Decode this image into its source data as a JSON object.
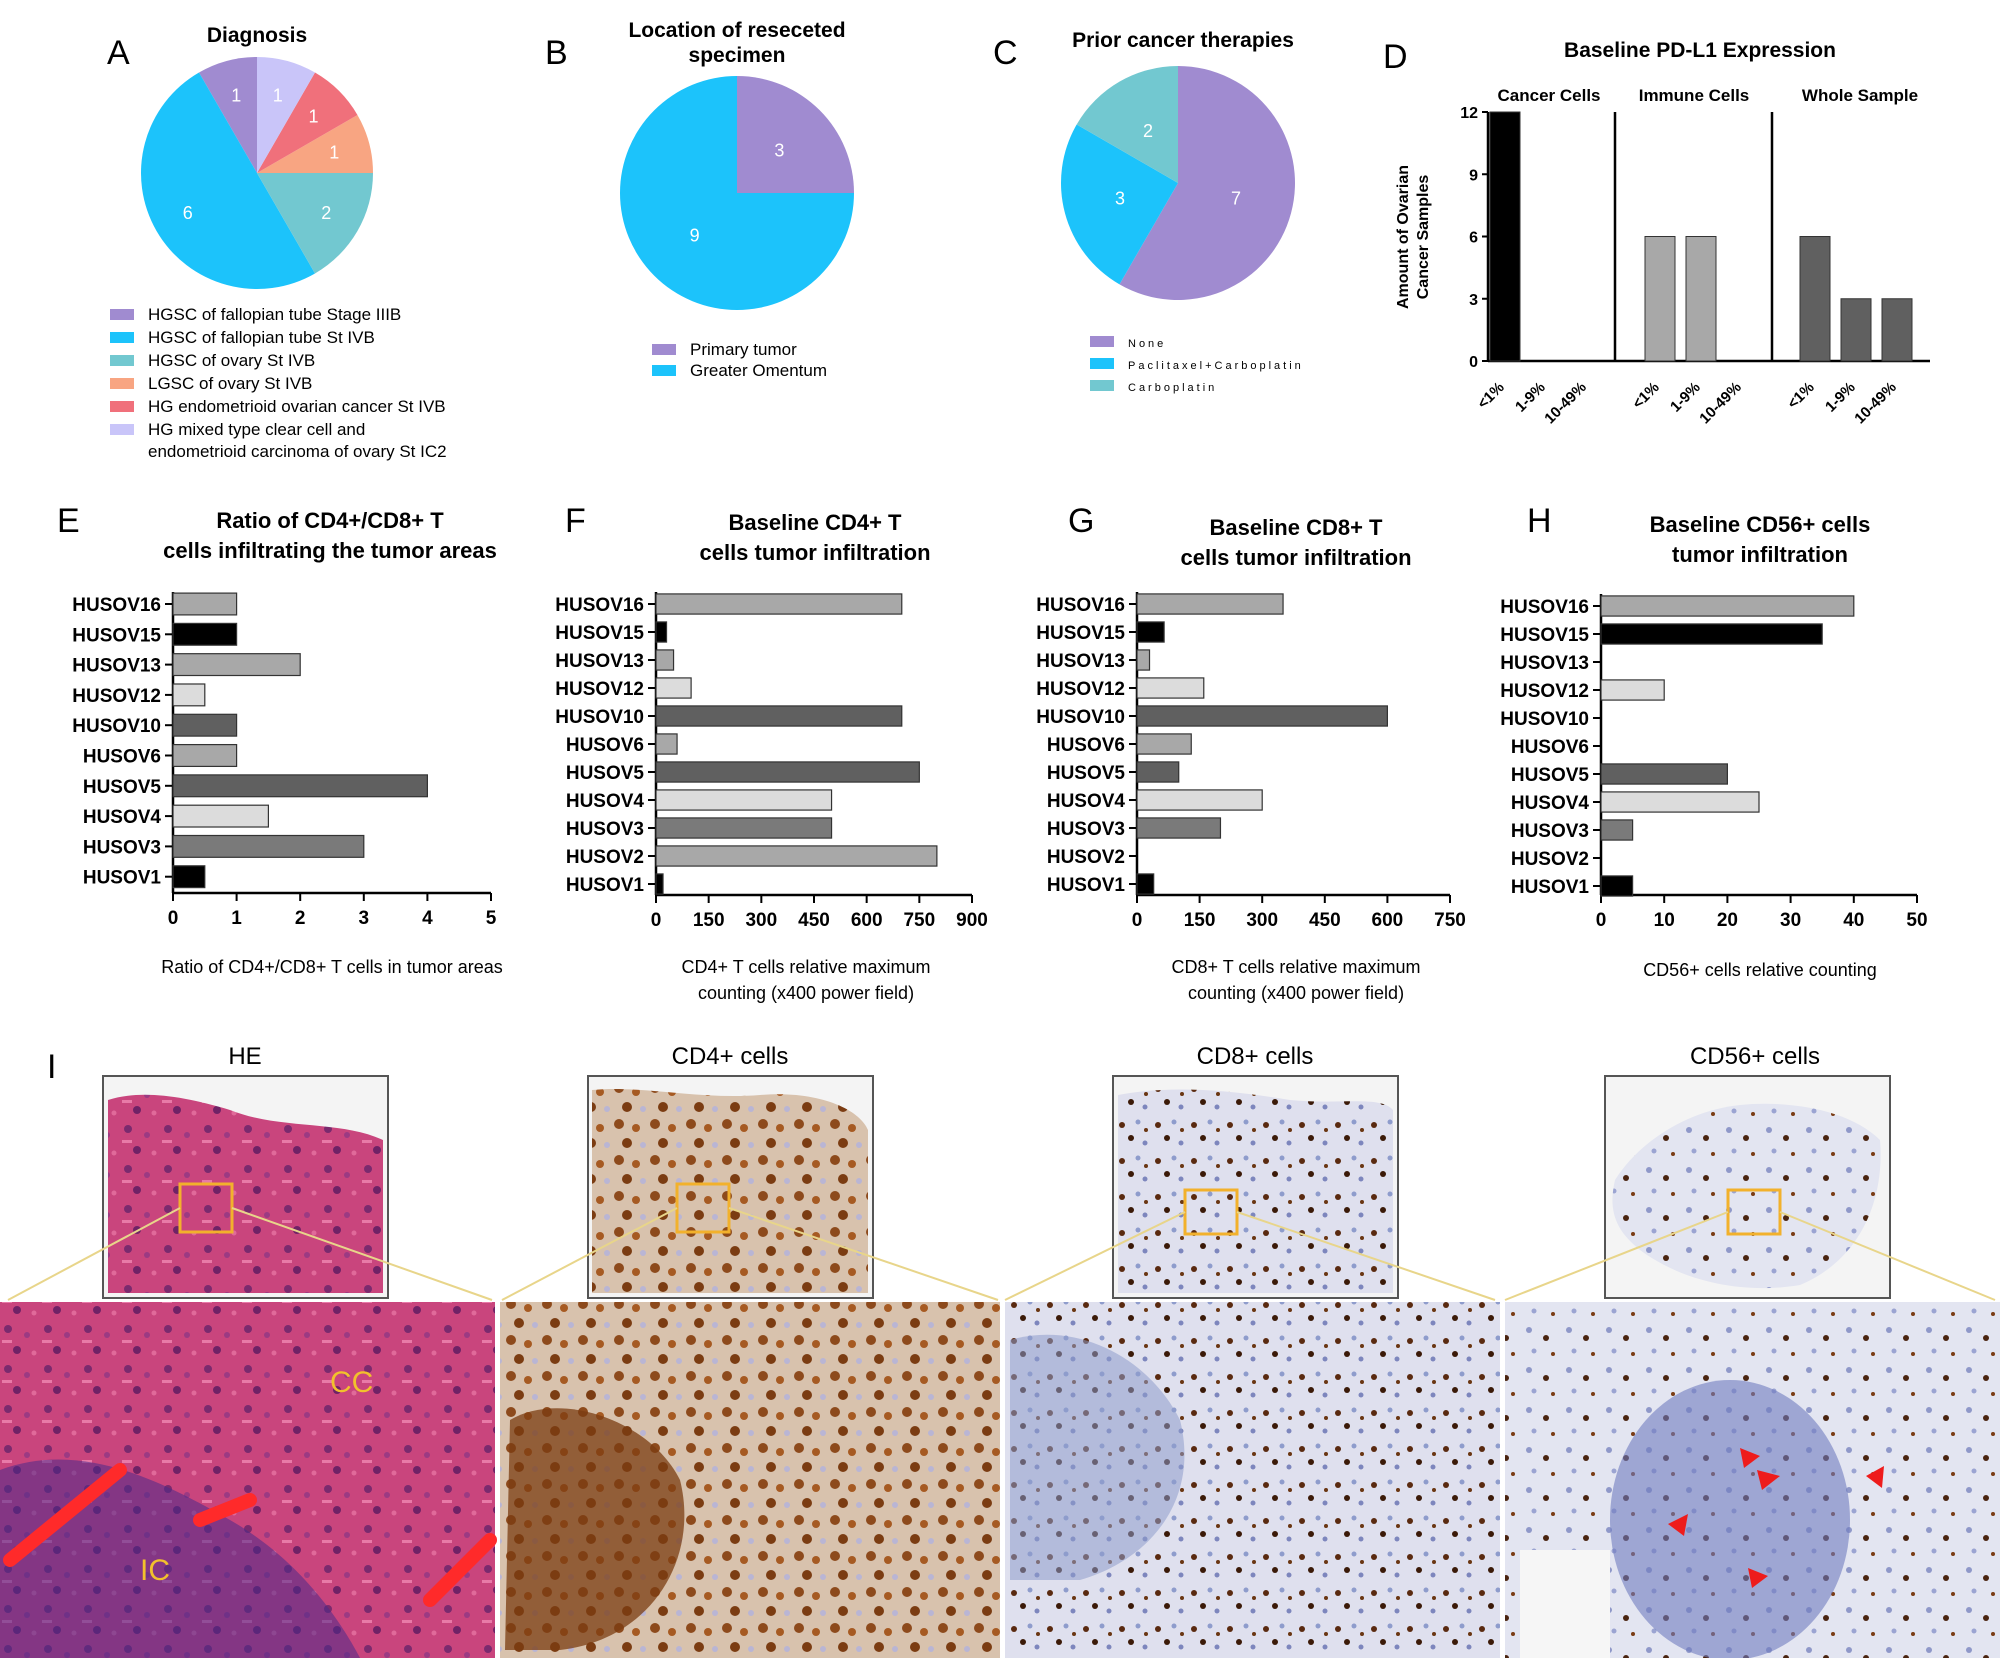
{
  "panel_letters": [
    "A",
    "B",
    "C",
    "D",
    "E",
    "F",
    "G",
    "H",
    "I"
  ],
  "colors": {
    "purple": "#a08bd0",
    "cyan": "#1cc3fb",
    "teal": "#72c8d0",
    "orange": "#f8a582",
    "red": "#f0707b",
    "lavender": "#c9c5f9",
    "gray_light": "#dcdcdc",
    "gray_mid": "#a8a8a8",
    "gray_dark": "#7a7a7a",
    "gray_darker": "#606060",
    "black": "#000000",
    "orange_box": "#f2b12c"
  },
  "chart_data": [
    {
      "id": "A",
      "type": "pie",
      "title": "Diagnosis",
      "slices": [
        {
          "label": "HGSC of fallopian tube Stage IIIB",
          "value": 1,
          "color_key": "purple"
        },
        {
          "label": "HGSC of fallopian tube St IVB",
          "value": 6,
          "color_key": "cyan"
        },
        {
          "label": "HGSC of ovary St IVB",
          "value": 2,
          "color_key": "teal"
        },
        {
          "label": "LGSC of ovary St IVB",
          "value": 1,
          "color_key": "orange"
        },
        {
          "label": "HG endometrioid ovarian cancer St IVB",
          "value": 1,
          "color_key": "red"
        },
        {
          "label": "HG mixed type clear cell and endometrioid carcinoma of ovary St IC2",
          "value": 1,
          "color_key": "lavender"
        }
      ]
    },
    {
      "id": "B",
      "type": "pie",
      "title": "Location of reseceted specimen",
      "slices": [
        {
          "label": "Primary tumor",
          "value": 3,
          "color_key": "purple"
        },
        {
          "label": "Greater Omentum",
          "value": 9,
          "color_key": "cyan"
        }
      ]
    },
    {
      "id": "C",
      "type": "pie",
      "title": "Prior cancer therapies",
      "slices": [
        {
          "label": "None",
          "value": 7,
          "color_key": "purple"
        },
        {
          "label": "Paclitaxel+Carboplatin",
          "value": 3,
          "color_key": "cyan"
        },
        {
          "label": "Carboplatin",
          "value": 2,
          "color_key": "teal"
        }
      ]
    },
    {
      "id": "D",
      "type": "bar",
      "title": "Baseline PD-L1 Expression",
      "ylabel": "Amount of Ovarian Cancer Samples",
      "ylim": [
        0,
        12
      ],
      "yticks": [
        0,
        3,
        6,
        9,
        12
      ],
      "categories": [
        "<1%",
        "1-9%",
        "10-49%"
      ],
      "series": [
        {
          "name": "Cancer Cells",
          "values": [
            12,
            0,
            0
          ],
          "color_key": "black"
        },
        {
          "name": "Immune Cells",
          "values": [
            6,
            6,
            0
          ],
          "color_key": "gray_mid"
        },
        {
          "name": "Whole Sample",
          "values": [
            6,
            3,
            3
          ],
          "color_key": "gray_darker"
        }
      ]
    },
    {
      "id": "E",
      "type": "bar",
      "orientation": "horizontal",
      "title": "Ratio of CD4+/CD8+ T cells infiltrating the tumor areas",
      "xlabel": "Ratio of CD4+/CD8+ T cells in tumor areas",
      "xlim": [
        0,
        5
      ],
      "xticks": [
        0,
        1,
        2,
        3,
        4,
        5
      ],
      "categories": [
        "HUSOV16",
        "HUSOV15",
        "HUSOV13",
        "HUSOV12",
        "HUSOV10",
        "HUSOV6",
        "HUSOV5",
        "HUSOV4",
        "HUSOV3",
        "HUSOV1"
      ],
      "values": [
        1,
        1,
        2,
        0.5,
        1,
        1,
        4,
        1.5,
        3,
        0.5
      ]
    },
    {
      "id": "F",
      "type": "bar",
      "orientation": "horizontal",
      "title": "Baseline CD4+ T cells tumor infiltration",
      "xlabel": "CD4+ T cells relative maximum counting (x400 power field)",
      "xlim": [
        0,
        900
      ],
      "xticks": [
        0,
        150,
        300,
        450,
        600,
        750,
        900
      ],
      "categories": [
        "HUSOV16",
        "HUSOV15",
        "HUSOV13",
        "HUSOV12",
        "HUSOV10",
        "HUSOV6",
        "HUSOV5",
        "HUSOV4",
        "HUSOV3",
        "HUSOV2",
        "HUSOV1"
      ],
      "values": [
        700,
        30,
        50,
        100,
        700,
        60,
        750,
        500,
        500,
        800,
        20
      ]
    },
    {
      "id": "G",
      "type": "bar",
      "orientation": "horizontal",
      "title": "Baseline CD8+ T cells tumor infiltration",
      "xlabel": "CD8+ T cells relative maximum counting (x400 power field)",
      "xlim": [
        0,
        750
      ],
      "xticks": [
        0,
        150,
        300,
        450,
        600,
        750
      ],
      "categories": [
        "HUSOV16",
        "HUSOV15",
        "HUSOV13",
        "HUSOV12",
        "HUSOV10",
        "HUSOV6",
        "HUSOV5",
        "HUSOV4",
        "HUSOV3",
        "HUSOV2",
        "HUSOV1"
      ],
      "values": [
        350,
        65,
        30,
        160,
        600,
        130,
        100,
        300,
        200,
        0,
        40
      ]
    },
    {
      "id": "H",
      "type": "bar",
      "orientation": "horizontal",
      "title": "Baseline CD56+ cells tumor infiltration",
      "xlabel": "CD56+ cells relative counting",
      "xlim": [
        0,
        50
      ],
      "xticks": [
        0,
        10,
        20,
        30,
        40,
        50
      ],
      "categories": [
        "HUSOV16",
        "HUSOV15",
        "HUSOV13",
        "HUSOV12",
        "HUSOV10",
        "HUSOV6",
        "HUSOV5",
        "HUSOV4",
        "HUSOV3",
        "HUSOV2",
        "HUSOV1"
      ],
      "values": [
        40,
        35,
        0,
        10,
        0,
        0,
        20,
        25,
        5,
        0,
        5
      ]
    }
  ],
  "bar_color_keys": {
    "HUSOV16": "gray_mid",
    "HUSOV15": "black",
    "HUSOV13": "gray_mid",
    "HUSOV12": "gray_light",
    "HUSOV10": "gray_darker",
    "HUSOV6": "gray_mid",
    "HUSOV5": "gray_darker",
    "HUSOV4": "gray_light",
    "HUSOV3": "gray_dark",
    "HUSOV2": "gray_mid",
    "HUSOV1": "black"
  },
  "histology": {
    "panels": [
      {
        "title": "HE",
        "labels": [
          "CC",
          "IC"
        ]
      },
      {
        "title": "CD4+ cells",
        "labels": []
      },
      {
        "title": "CD8+ cells",
        "labels": []
      },
      {
        "title": "CD56+ cells",
        "labels": []
      }
    ]
  }
}
